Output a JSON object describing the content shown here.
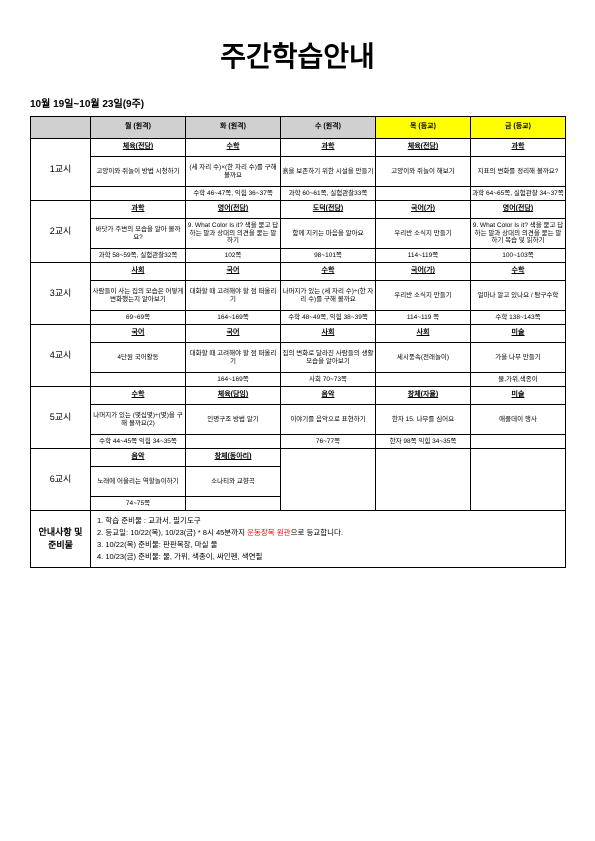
{
  "title": "주간학습안내",
  "dateRange": "10월 19일~10월 23일(9주)",
  "headers": {
    "blank": "",
    "mon": "월 (원격)",
    "tue": "화 (원격)",
    "wed": "수 (원격)",
    "thu": "목 (등교)",
    "fri": "금 (등교)"
  },
  "periods": {
    "p1": {
      "label": "1교시",
      "mon": {
        "subj": "체육(전담)",
        "cont": "고양이와 쥐놀이 방법 시청하기",
        "page": ""
      },
      "tue": {
        "subj": "수학",
        "cont": "(세 자리 수)×(한 자리 수)를 구해 볼까요",
        "page": "수학 46~47쪽, 익힘 36~37쪽"
      },
      "wed": {
        "subj": "과학",
        "cont": "흙을 보존하기 위한 시설을 만들기",
        "page": "과학 60~61쪽, 실험관찰33쪽"
      },
      "thu": {
        "subj": "체육(전담)",
        "cont": "고양이와 쥐놀이 해보기",
        "page": ""
      },
      "fri": {
        "subj": "과학",
        "cont": "지표의 변화를 정리해 볼까요?",
        "page": "과학 64~65쪽, 실험관찰 34~37쪽"
      }
    },
    "p2": {
      "label": "2교시",
      "mon": {
        "subj": "과학",
        "cont": "바닷가 주변의 모습을 알아 볼까요?",
        "page": "과학 58~59쪽, 실험관찰32쪽"
      },
      "tue": {
        "subj": "영어(전담)",
        "cont": "9. What Color Is it?\n색을 묻고 답하는 말과 상대의 의견을 묻는 말하기",
        "page": "102쪽"
      },
      "wed": {
        "subj": "도덕(전담)",
        "cont": "함께 지키는 마음을 알아요",
        "page": "98~101쪽"
      },
      "thu": {
        "subj": "국어(가)",
        "cont": "우리반 소식지 만들기",
        "page": "114~119쪽"
      },
      "fri": {
        "subj": "영어(전담)",
        "cont": "9. What Color Is it?\n색을 묻고 답하는 말과 상대의 의견을 묻는 말하기 복습 및 읽하기",
        "page": "100~103쪽"
      }
    },
    "p3": {
      "label": "3교시",
      "mon": {
        "subj": "사회",
        "cont": "사람들이 사는 집의 모습은 어떻게 변화했는지 알아보기",
        "page": "69~69쪽"
      },
      "tue": {
        "subj": "국어",
        "cont": "대화할 때 고려해야 할 점 떠올리기",
        "page": "164~169쪽"
      },
      "wed": {
        "subj": "수학",
        "cont": "나머지가 있는 (세 자리 수)÷(한 자리 수)를 구해 볼까요",
        "page": "수학 48~49쪽, 익힘 38~39쪽"
      },
      "thu": {
        "subj": "국어(가)",
        "cont": "우리반 소식지 만들기",
        "page": "114~119 쪽"
      },
      "fri": {
        "subj": "수학",
        "cont": "얼마나 알고 있나요 / 탐구수학",
        "page": "수학 138~143쪽"
      }
    },
    "p4": {
      "label": "4교시",
      "mon": {
        "subj": "국어",
        "cont": "4단원 국어활동",
        "page": ""
      },
      "tue": {
        "subj": "국어",
        "cont": "대화할 때 고려해야 할 점 떠올리기",
        "page": "164~169쪽"
      },
      "wed": {
        "subj": "사회",
        "cont": "집의 변화로 달라진 사람들의 생활 모습을 알아보기",
        "page": "사회 70~73쪽"
      },
      "thu": {
        "subj": "사회",
        "cont": "세시풍속(전래놀이)",
        "page": ""
      },
      "fri": {
        "subj": "미술",
        "cont": "가을 나무 만들기",
        "page": "물,가위,색종이"
      }
    },
    "p5": {
      "label": "5교시",
      "mon": {
        "subj": "수학",
        "cont": "나머지가 있는 (몇십몇)÷(몇)을 구해 볼까요(2)",
        "page": "수학 44~45쪽 익힘 34~35쪽"
      },
      "tue": {
        "subj": "체육(담임)",
        "cont": "인명구조 방법 알기",
        "page": ""
      },
      "wed": {
        "subj": "음악",
        "cont": "이야기를 음악으로 표현하기",
        "page": "76~77쪽"
      },
      "thu": {
        "subj": "창체(자율)",
        "cont": "한자\n15. 나무를 심어요",
        "page": "한자 98쪽 익힘 34~35쪽"
      },
      "fri": {
        "subj": "미술",
        "cont": "애플데이 행사",
        "page": ""
      }
    },
    "p6": {
      "label": "6교시",
      "mon": {
        "subj": "음악",
        "cont": "노래에 어울리는 역할놀이하기",
        "page": "74~75쪽"
      },
      "tue": {
        "subj": "창체(동아리)",
        "cont": "소나티와 교향곡",
        "page": ""
      }
    }
  },
  "notice": {
    "label": "안내사항 및\n준비물",
    "line1": "1. 학습 준비물 : 교과서, 필기도구",
    "line2a": "2. 등교일: 10/22(목), 10/23(금) * 8시 45분까지 ",
    "line2red": "운동장복 원관",
    "line2b": "으로 등교합니다.",
    "line3": "3. 10/22(목) 준비물: 판판복장, 마실 물",
    "line4": "4. 10/23(금) 준비물: 물, 가위, 색종이, 싸인펜, 색연필"
  }
}
